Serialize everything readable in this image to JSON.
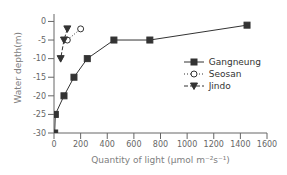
{
  "chart_data": {
    "type": "line",
    "xlabel": "Quantity of light (μmol m⁻²s⁻¹)",
    "ylabel": "Water depth(m)",
    "xlim": [
      0,
      1600
    ],
    "ylim": [
      -30,
      2
    ],
    "xticks": [
      0,
      200,
      400,
      600,
      800,
      1000,
      1200,
      1400,
      1600
    ],
    "yticks": [
      0,
      -5,
      -10,
      -15,
      -20,
      -25,
      -30
    ],
    "grid": false,
    "legend": "right",
    "series": [
      {
        "name": "Gangneung",
        "color": "#333333",
        "marker": "square",
        "line_style": "solid",
        "x": [
          5,
          10,
          75,
          150,
          250,
          450,
          720,
          1450
        ],
        "values": [
          -30,
          -25,
          -20,
          -15,
          -10,
          -5,
          -5,
          -1
        ]
      },
      {
        "name": "Seosan",
        "color": "#333333",
        "marker": "open_circle",
        "line_style": "dotted",
        "x": [
          100,
          200
        ],
        "values": [
          -5,
          -2
        ]
      },
      {
        "name": "Jindo",
        "color": "#333333",
        "marker": "triangle_down",
        "line_style": "dashed",
        "x": [
          100,
          75,
          50
        ],
        "values": [
          -2,
          -5,
          -10
        ]
      }
    ]
  }
}
